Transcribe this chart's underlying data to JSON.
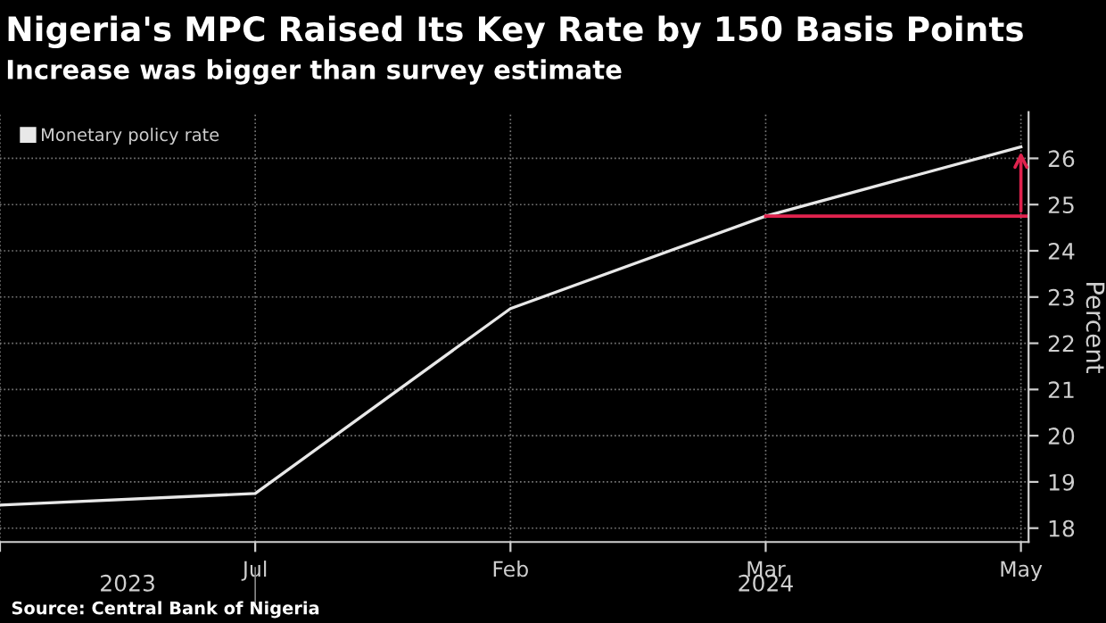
{
  "chart_data": {
    "type": "line",
    "title": "Nigeria's MPC Raised Its Key Rate by 150 Basis Points",
    "subtitle": "Increase was bigger than survey estimate",
    "ylabel": "Percent",
    "categories": [
      null,
      "Jul",
      "Feb",
      "Mar",
      "May"
    ],
    "series": [
      {
        "name": "Monetary policy rate",
        "color": "#e8e8e8",
        "values": [
          18.5,
          18.75,
          22.75,
          24.75,
          26.25
        ]
      }
    ],
    "ylim": [
      17.7,
      27.0
    ],
    "yticks": [
      18,
      19,
      20,
      21,
      22,
      23,
      24,
      25,
      26
    ],
    "ref_lines": [
      {
        "axis": "y",
        "value": 24.75,
        "color": "#e0234e"
      }
    ],
    "annotations": [
      "2023",
      "2024",
      "Source: Central Bank of Nigeria"
    ],
    "grid": true,
    "legend": "top left",
    "marker": "none",
    "line_style": "solid"
  }
}
